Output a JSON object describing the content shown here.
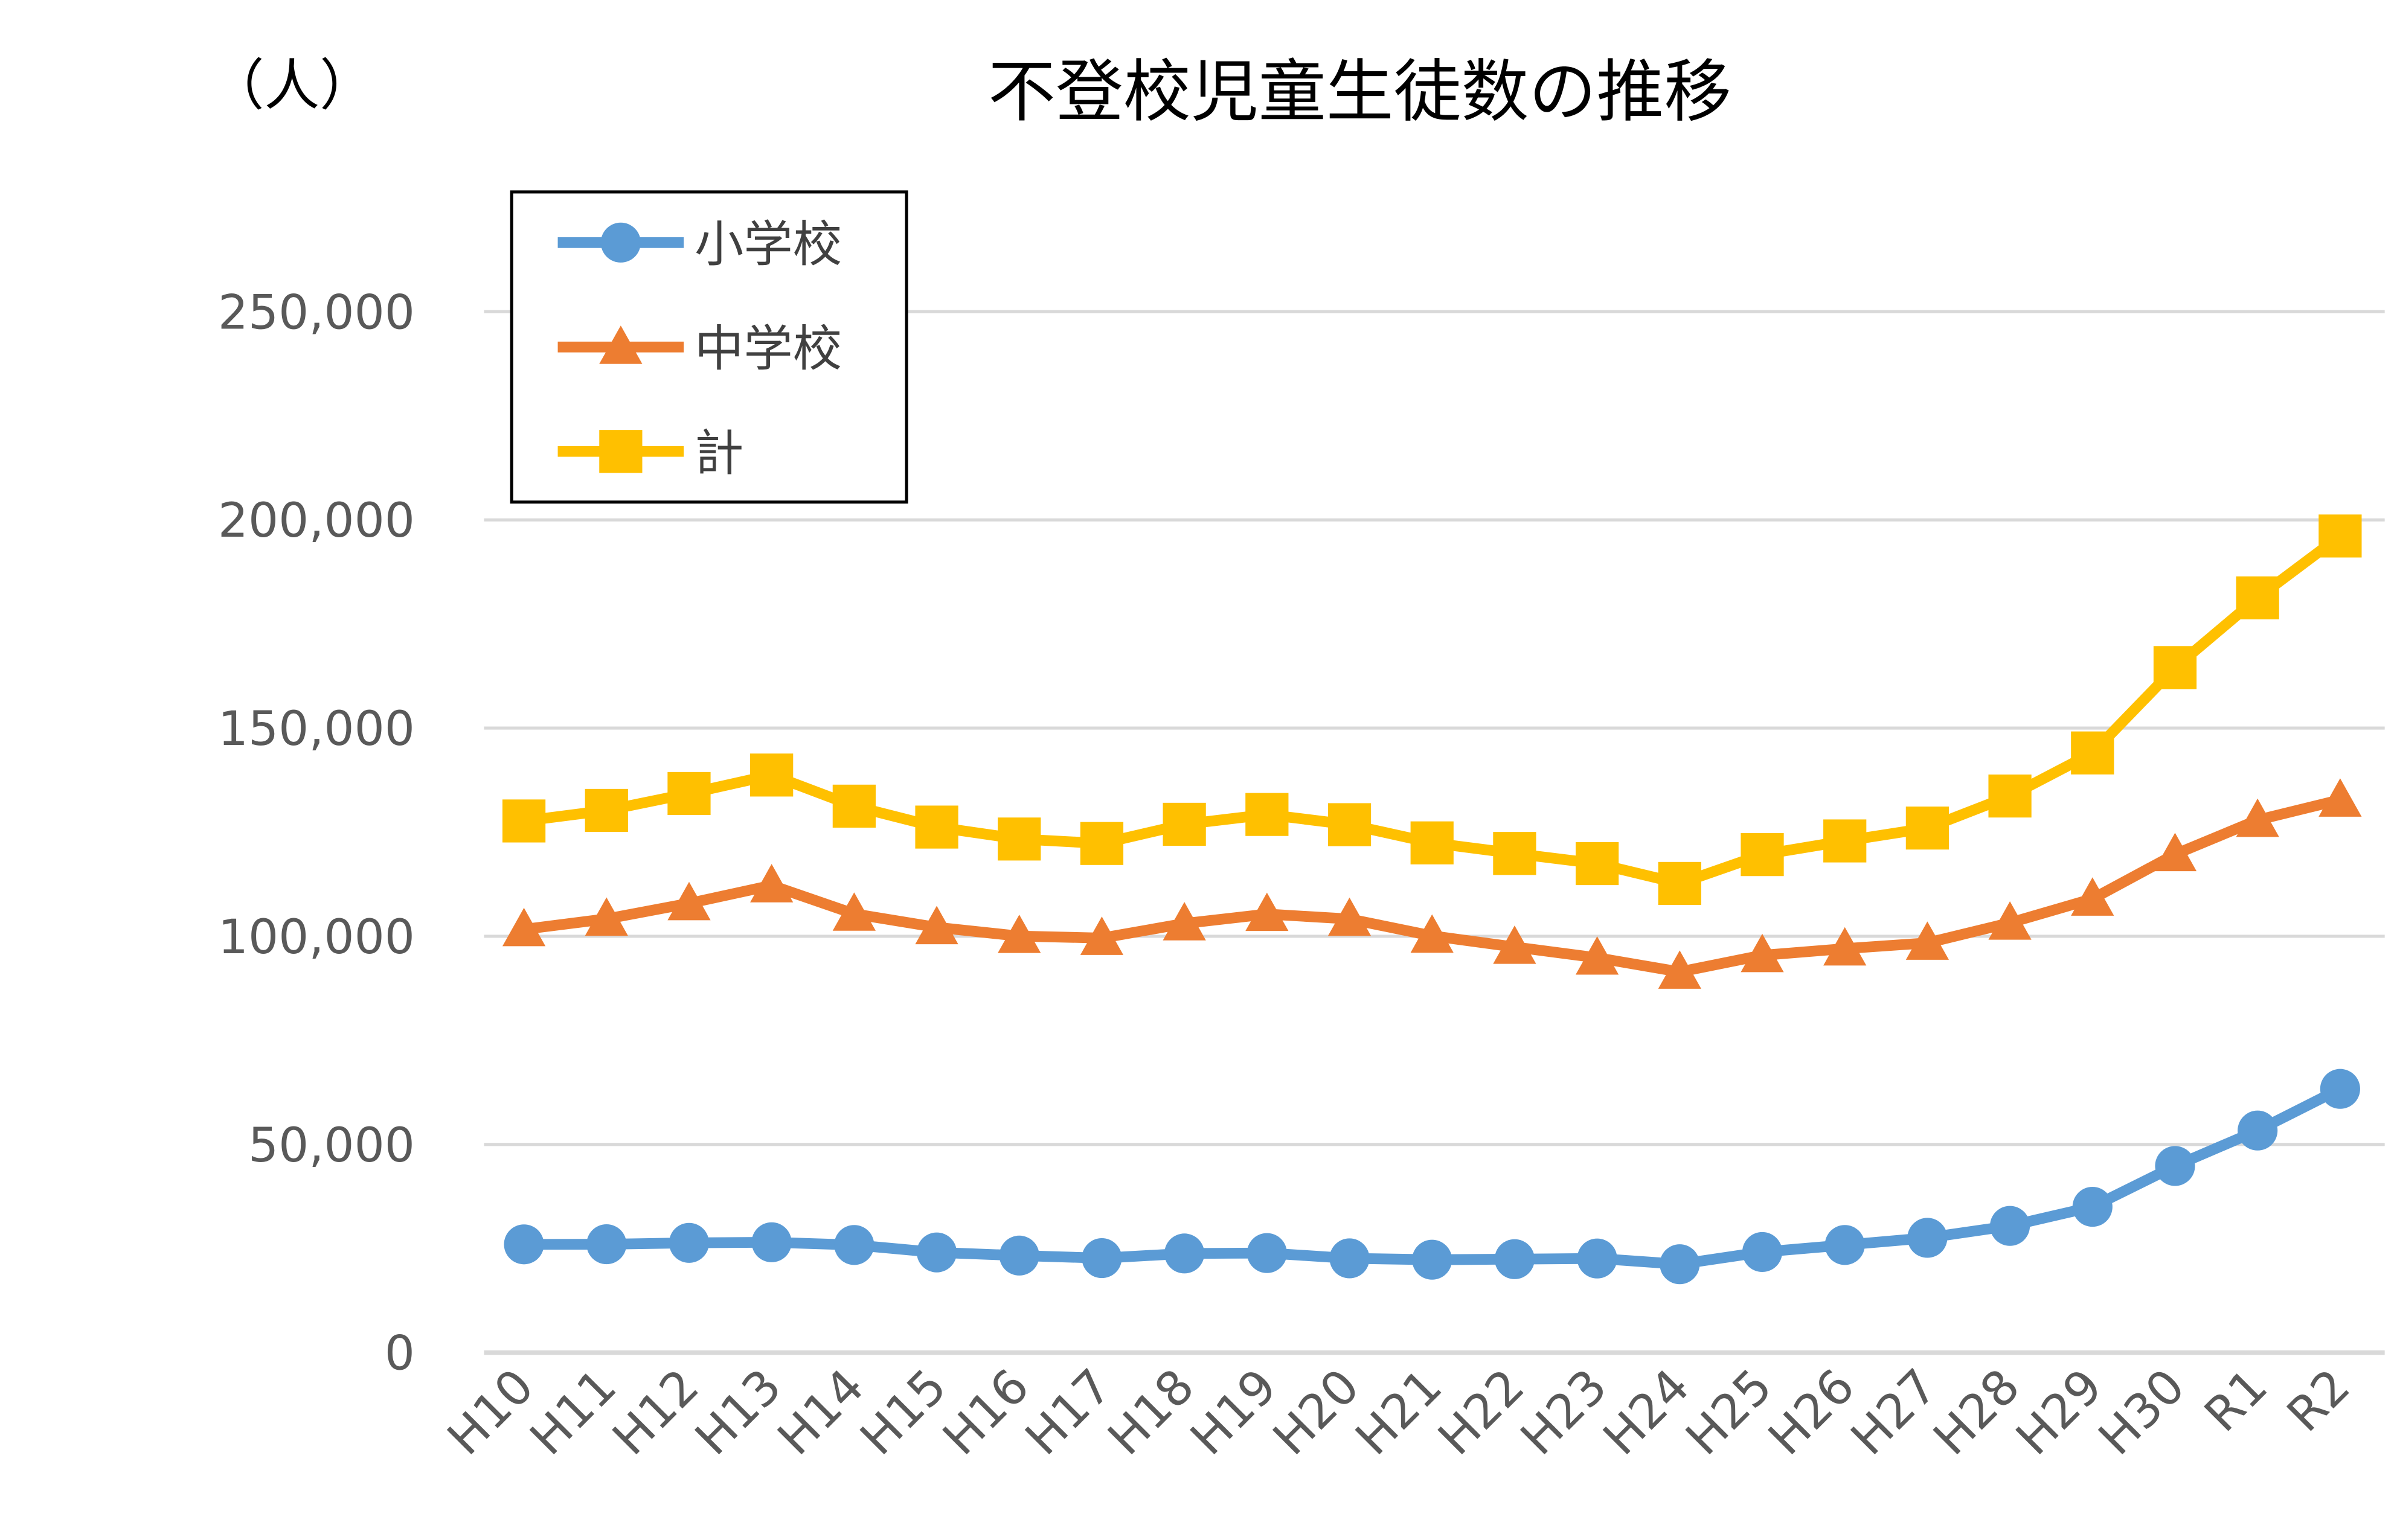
{
  "chart_data": {
    "type": "line",
    "title": "不登校児童生徒数の推移",
    "ylabel": "（人）",
    "xlabel": "",
    "ylim": [
      0,
      250000
    ],
    "yticks": [
      0,
      50000,
      100000,
      150000,
      200000,
      250000
    ],
    "ytick_labels": [
      "0",
      "50,000",
      "100,000",
      "150,000",
      "200,000",
      "250,000"
    ],
    "grid": true,
    "legend_position": "top-left",
    "categories": [
      "H10",
      "H11",
      "H12",
      "H13",
      "H14",
      "H15",
      "H16",
      "H17",
      "H18",
      "H19",
      "H20",
      "H21",
      "H22",
      "H23",
      "H24",
      "H25",
      "H26",
      "H27",
      "H28",
      "H29",
      "H30",
      "R1",
      "R2"
    ],
    "series": [
      {
        "name": "小学校",
        "color": "#5B9BD5",
        "marker": "circle",
        "values": [
          26017,
          26047,
          26373,
          26511,
          25869,
          24077,
          23318,
          22709,
          23825,
          23927,
          22652,
          22327,
          22463,
          22622,
          21243,
          24175,
          25864,
          27583,
          30448,
          35032,
          44841,
          53350,
          63350
        ]
      },
      {
        "name": "中学校",
        "color": "#ED7D31",
        "marker": "triangle",
        "values": [
          101675,
          104180,
          107913,
          112211,
          105383,
          102149,
          100040,
          99578,
          103069,
          105328,
          104153,
          100105,
          97428,
          94836,
          91446,
          95442,
          97033,
          98408,
          103235,
          108999,
          119687,
          127922,
          132777
        ]
      },
      {
        "name": "計",
        "color": "#FFC000",
        "marker": "square",
        "values": [
          127692,
          130227,
          134286,
          138722,
          131252,
          126226,
          123358,
          122287,
          126894,
          129255,
          126805,
          122432,
          119891,
          117458,
          112689,
          119617,
          122897,
          125991,
          133683,
          144031,
          164528,
          181272,
          196127
        ]
      }
    ]
  }
}
